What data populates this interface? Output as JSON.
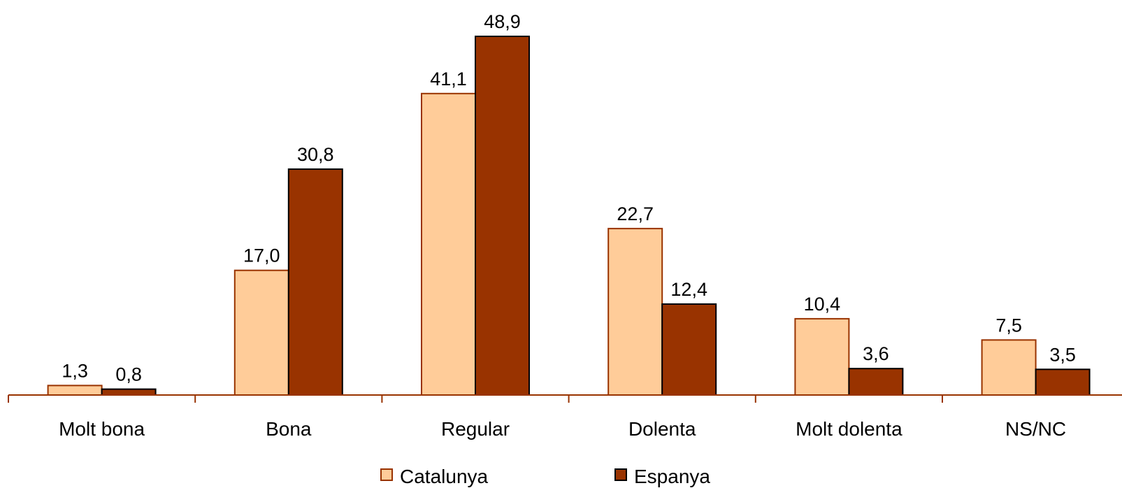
{
  "chart_data": {
    "type": "bar",
    "categories": [
      "Molt bona",
      "Bona",
      "Regular",
      "Dolenta",
      "Molt dolenta",
      "NS/NC"
    ],
    "series": [
      {
        "name": "Catalunya",
        "values": [
          1.3,
          17.0,
          41.1,
          22.7,
          10.4,
          7.5
        ],
        "labels": [
          "1,3",
          "17,0",
          "41,1",
          "22,7",
          "10,4",
          "7,5"
        ],
        "color": "#FFCC99",
        "stroke": "#993300"
      },
      {
        "name": "Espanya",
        "values": [
          0.8,
          30.8,
          48.9,
          12.4,
          3.6,
          3.5
        ],
        "labels": [
          "0,8",
          "30,8",
          "48,9",
          "12,4",
          "3,6",
          "3,5"
        ],
        "color": "#993300",
        "stroke": "#000000"
      }
    ],
    "title": "",
    "xlabel": "",
    "ylabel": "",
    "ylim": [
      0,
      48.9
    ],
    "grid": false,
    "legend_position": "bottom",
    "axis_color": "#993300"
  }
}
